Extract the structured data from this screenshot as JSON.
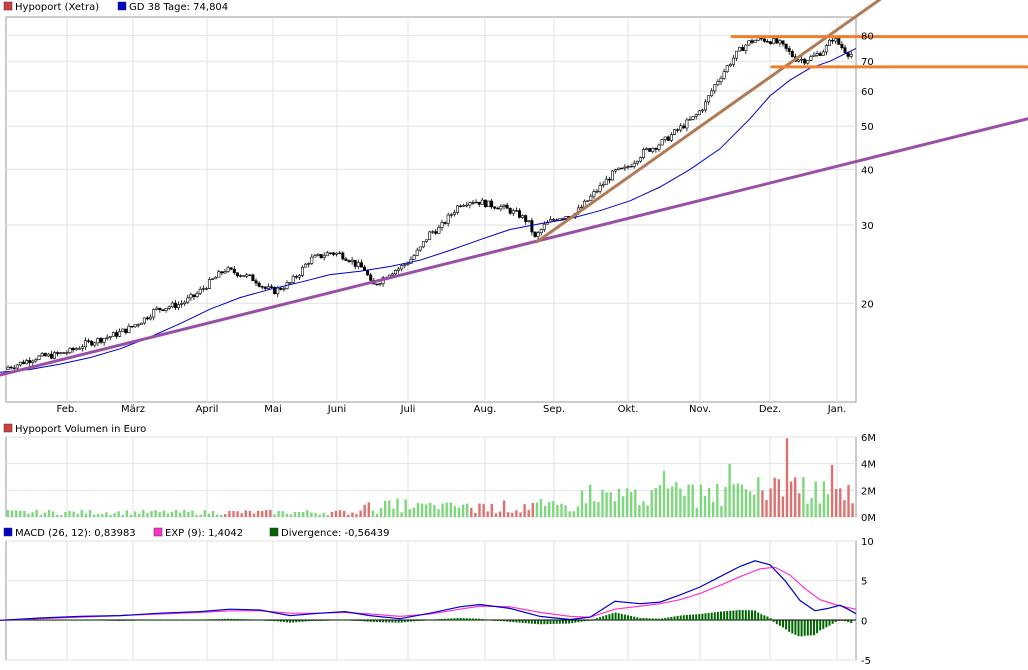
{
  "chart_data": [
    {
      "type": "candlestick",
      "title": "Hypoport (Xetra)",
      "scale": "log",
      "ylim": [
        12,
        88
      ],
      "yticks": [
        20,
        30,
        40,
        50,
        60,
        70,
        80
      ],
      "ytick_labels": [
        "20",
        "30",
        "40",
        "50",
        "60",
        "70",
        "80"
      ],
      "months": [
        "Feb.",
        "März",
        "April",
        "Mai",
        "Juni",
        "Juli",
        "Aug.",
        "Sep.",
        "Okt.",
        "Nov.",
        "Dez.",
        "Jan."
      ],
      "legend": [
        {
          "label": "Hypoport (Xetra)",
          "color": "#d04040"
        },
        {
          "label": "GD 38 Tage: 74,804",
          "color": "#0000cc"
        }
      ],
      "price_path": [
        [
          0,
          14.2
        ],
        [
          18,
          14.6
        ],
        [
          35,
          15.1
        ],
        [
          55,
          15.3
        ],
        [
          70,
          15.6
        ],
        [
          85,
          16.2
        ],
        [
          100,
          16.6
        ],
        [
          115,
          17.0
        ],
        [
          130,
          17.6
        ],
        [
          145,
          18.5
        ],
        [
          155,
          19.3
        ],
        [
          165,
          19.6
        ],
        [
          180,
          19.9
        ],
        [
          195,
          20.8
        ],
        [
          205,
          21.8
        ],
        [
          215,
          22.8
        ],
        [
          225,
          23.8
        ],
        [
          240,
          23.3
        ],
        [
          255,
          22.6
        ],
        [
          265,
          21.6
        ],
        [
          275,
          21.3
        ],
        [
          290,
          22.2
        ],
        [
          300,
          23.5
        ],
        [
          310,
          25.1
        ],
        [
          320,
          25.5
        ],
        [
          330,
          26.0
        ],
        [
          340,
          25.8
        ],
        [
          350,
          25.1
        ],
        [
          355,
          24.5
        ],
        [
          365,
          23.8
        ],
        [
          372,
          21.8
        ],
        [
          380,
          22.5
        ],
        [
          390,
          23.5
        ],
        [
          400,
          24.0
        ],
        [
          410,
          25.0
        ],
        [
          420,
          26.5
        ],
        [
          430,
          28.8
        ],
        [
          440,
          29.5
        ],
        [
          450,
          31.5
        ],
        [
          460,
          33.5
        ],
        [
          470,
          34.0
        ],
        [
          480,
          33.8
        ],
        [
          490,
          33.3
        ],
        [
          500,
          33.0
        ],
        [
          510,
          32.3
        ],
        [
          520,
          31.5
        ],
        [
          528,
          30.5
        ],
        [
          535,
          28.0
        ],
        [
          545,
          30.0
        ],
        [
          555,
          31.0
        ],
        [
          565,
          31.5
        ],
        [
          575,
          31.8
        ],
        [
          585,
          33.5
        ],
        [
          595,
          35.5
        ],
        [
          605,
          37.5
        ],
        [
          615,
          39.5
        ],
        [
          625,
          40.0
        ],
        [
          635,
          42.0
        ],
        [
          645,
          44.0
        ],
        [
          655,
          45.0
        ],
        [
          665,
          46.5
        ],
        [
          675,
          48.5
        ],
        [
          685,
          50.5
        ],
        [
          695,
          52.5
        ],
        [
          705,
          56.0
        ],
        [
          715,
          62.0
        ],
        [
          725,
          67.0
        ],
        [
          735,
          72.0
        ],
        [
          742,
          75.0
        ],
        [
          750,
          77.5
        ],
        [
          760,
          78.5
        ],
        [
          770,
          78.0
        ],
        [
          780,
          76.5
        ],
        [
          787,
          74.0
        ],
        [
          795,
          71.0
        ],
        [
          805,
          70.5
        ],
        [
          815,
          72.0
        ],
        [
          825,
          74.5
        ],
        [
          833,
          79.0
        ],
        [
          840,
          76.0
        ],
        [
          848,
          73.0
        ],
        [
          856,
          72.0
        ]
      ],
      "moving_average_path": [
        [
          0,
          14.0
        ],
        [
          30,
          14.2
        ],
        [
          60,
          14.6
        ],
        [
          90,
          15.1
        ],
        [
          120,
          15.8
        ],
        [
          150,
          16.8
        ],
        [
          180,
          18.0
        ],
        [
          210,
          19.4
        ],
        [
          240,
          20.6
        ],
        [
          270,
          21.5
        ],
        [
          300,
          22.3
        ],
        [
          330,
          23.2
        ],
        [
          360,
          23.6
        ],
        [
          390,
          24.2
        ],
        [
          420,
          25.0
        ],
        [
          450,
          26.3
        ],
        [
          480,
          27.8
        ],
        [
          510,
          29.3
        ],
        [
          540,
          30.2
        ],
        [
          570,
          31.0
        ],
        [
          600,
          32.3
        ],
        [
          630,
          34.0
        ],
        [
          660,
          36.5
        ],
        [
          690,
          40.0
        ],
        [
          720,
          44.5
        ],
        [
          750,
          52.0
        ],
        [
          770,
          58.5
        ],
        [
          790,
          63.5
        ],
        [
          810,
          67.5
        ],
        [
          830,
          70.0
        ],
        [
          856,
          74.8
        ]
      ],
      "trendlines": [
        {
          "name": "support-long",
          "color": "#9a4fa6",
          "points": [
            [
              0,
              13.8
            ],
            [
              1028,
              52.0
            ]
          ]
        },
        {
          "name": "support-short",
          "color": "#b07a55",
          "points": [
            [
              537,
              27.5
            ],
            [
              940,
              120.0
            ]
          ]
        },
        {
          "name": "resistance",
          "color": "#f08030",
          "points": [
            [
              732,
              79.5
            ],
            [
              1028,
              79.5
            ]
          ]
        },
        {
          "name": "support-horizontal",
          "color": "#f08030",
          "points": [
            [
              772,
              68.0
            ],
            [
              1028,
              68.0
            ]
          ]
        }
      ]
    },
    {
      "type": "bar",
      "title": "Hypoport Volumen in Euro",
      "ylim": [
        0,
        6
      ],
      "yticks": [
        0,
        2,
        4,
        6
      ],
      "ytick_labels": [
        "0M",
        "2M",
        "4M",
        "6M"
      ],
      "legend": [
        {
          "label": "Hypoport Volumen in Euro",
          "color": "#d04040"
        }
      ],
      "colors": {
        "up": "#7dd87d",
        "down": "#e07070"
      }
    },
    {
      "type": "line",
      "title": "MACD",
      "ylim": [
        -5,
        10
      ],
      "yticks": [
        -5,
        0,
        5,
        10
      ],
      "ytick_labels": [
        "-5",
        "0",
        "5",
        "10"
      ],
      "legend": [
        {
          "label": "MACD (26, 12): 0,83983",
          "color": "#0000cc"
        },
        {
          "label": "EXP (9): 1,4042",
          "color": "#ff33cc"
        },
        {
          "label": "Divergence: -0,56439",
          "color": "#006600"
        }
      ],
      "macd_path": [
        [
          0,
          0
        ],
        [
          40,
          0.3
        ],
        [
          80,
          0.5
        ],
        [
          120,
          0.6
        ],
        [
          160,
          0.9
        ],
        [
          200,
          1.1
        ],
        [
          230,
          1.4
        ],
        [
          260,
          1.3
        ],
        [
          290,
          0.6
        ],
        [
          320,
          0.9
        ],
        [
          345,
          1.1
        ],
        [
          370,
          0.6
        ],
        [
          400,
          0.2
        ],
        [
          430,
          0.9
        ],
        [
          460,
          1.7
        ],
        [
          480,
          2.0
        ],
        [
          510,
          1.5
        ],
        [
          540,
          0.5
        ],
        [
          570,
          0.1
        ],
        [
          590,
          0.4
        ],
        [
          615,
          2.4
        ],
        [
          640,
          2.1
        ],
        [
          660,
          2.3
        ],
        [
          680,
          3.2
        ],
        [
          700,
          4.2
        ],
        [
          720,
          5.5
        ],
        [
          740,
          6.8
        ],
        [
          755,
          7.5
        ],
        [
          770,
          7.0
        ],
        [
          785,
          5.0
        ],
        [
          800,
          2.5
        ],
        [
          815,
          1.2
        ],
        [
          828,
          1.5
        ],
        [
          840,
          1.9
        ],
        [
          848,
          1.4
        ],
        [
          856,
          0.84
        ]
      ],
      "exp_path": [
        [
          0,
          0
        ],
        [
          40,
          0.2
        ],
        [
          80,
          0.4
        ],
        [
          120,
          0.6
        ],
        [
          160,
          0.8
        ],
        [
          200,
          1.0
        ],
        [
          230,
          1.2
        ],
        [
          260,
          1.2
        ],
        [
          290,
          0.9
        ],
        [
          320,
          0.9
        ],
        [
          345,
          1.0
        ],
        [
          370,
          0.8
        ],
        [
          400,
          0.5
        ],
        [
          430,
          0.8
        ],
        [
          460,
          1.4
        ],
        [
          480,
          1.8
        ],
        [
          510,
          1.7
        ],
        [
          540,
          1.0
        ],
        [
          570,
          0.5
        ],
        [
          590,
          0.4
        ],
        [
          615,
          1.4
        ],
        [
          640,
          1.8
        ],
        [
          660,
          2.1
        ],
        [
          680,
          2.6
        ],
        [
          700,
          3.4
        ],
        [
          720,
          4.4
        ],
        [
          740,
          5.5
        ],
        [
          760,
          6.5
        ],
        [
          775,
          6.7
        ],
        [
          790,
          5.7
        ],
        [
          805,
          4.0
        ],
        [
          820,
          2.6
        ],
        [
          835,
          2.0
        ],
        [
          848,
          1.6
        ],
        [
          856,
          1.4
        ]
      ]
    }
  ]
}
